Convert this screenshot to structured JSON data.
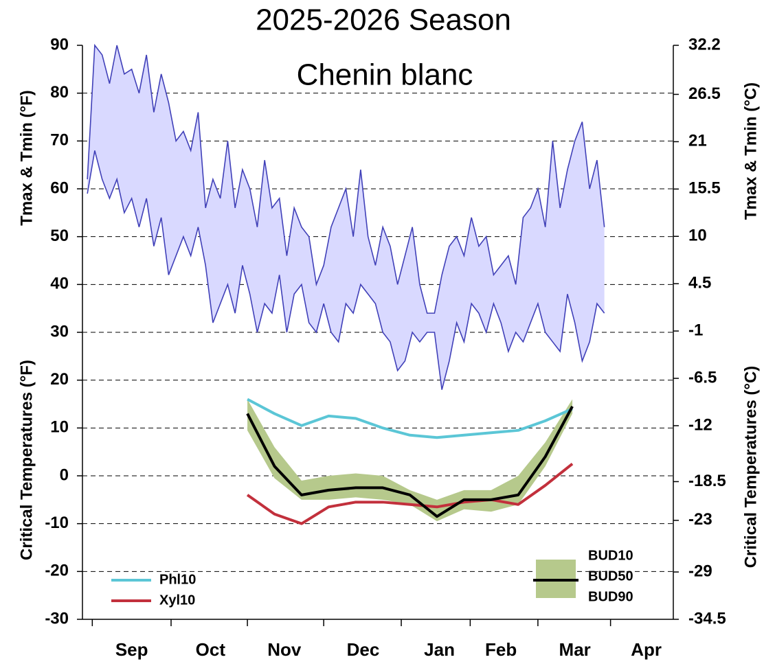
{
  "chart_data": {
    "type": "line",
    "title": "2025-2026 Season",
    "annotation": "Chenin blanc",
    "y_label_top": "Tmax & Tmin (°F)",
    "y_label_bottom": "Critical Temperatures (°F)",
    "y2_label_top": "Tmax & Tmin (°C)",
    "y2_label_bottom": "Critical Temperatures (°C)",
    "xlim": [
      0,
      240
    ],
    "xticks": [
      {
        "value": 20,
        "label": "Sep"
      },
      {
        "value": 52,
        "label": "Oct"
      },
      {
        "value": 82,
        "label": "Nov"
      },
      {
        "value": 114,
        "label": "Dec"
      },
      {
        "value": 145,
        "label": "Jan"
      },
      {
        "value": 170,
        "label": "Feb"
      },
      {
        "value": 200,
        "label": "Mar"
      },
      {
        "value": 229,
        "label": "Apr"
      }
    ],
    "ylim": [
      -30,
      90
    ],
    "yticks": [
      -30,
      -20,
      -10,
      0,
      10,
      20,
      30,
      40,
      50,
      60,
      70,
      80,
      90
    ],
    "y2lim": [
      -34.5,
      32.2
    ],
    "y2ticks": [
      -34.5,
      -29,
      -23,
      -18.5,
      -12,
      -6.5,
      -1,
      4.5,
      10,
      15.5,
      21,
      26.5,
      32.2
    ],
    "grid": true,
    "range": {
      "color": "#4040b8",
      "fill_color": "#d9d9ff",
      "x": [
        2,
        5,
        8,
        11,
        14,
        17,
        20,
        23,
        26,
        29,
        32,
        35,
        38,
        41,
        44,
        47,
        50,
        53,
        56,
        59,
        62,
        65,
        68,
        71,
        74,
        77,
        80,
        83,
        86,
        89,
        92,
        95,
        98,
        101,
        104,
        107,
        110,
        113,
        116,
        119,
        122,
        125,
        128,
        131,
        134,
        137,
        140,
        143,
        146,
        149,
        152,
        155,
        158,
        161,
        164,
        167,
        170,
        173,
        176,
        179,
        182,
        185,
        188,
        191,
        194,
        197,
        200,
        203,
        206,
        209,
        212
      ],
      "tmax": [
        62,
        90,
        88,
        82,
        90,
        84,
        85,
        80,
        88,
        76,
        84,
        78,
        70,
        72,
        68,
        76,
        56,
        62,
        58,
        70,
        56,
        64,
        60,
        52,
        66,
        56,
        58,
        46,
        56,
        52,
        50,
        40,
        44,
        52,
        56,
        60,
        50,
        64,
        50,
        44,
        52,
        48,
        40,
        46,
        52,
        40,
        34,
        34,
        42,
        48,
        50,
        46,
        54,
        48,
        50,
        42,
        44,
        46,
        40,
        54,
        56,
        60,
        52,
        70,
        56,
        64,
        70,
        74,
        60,
        66,
        52
      ],
      "tmin": [
        59,
        68,
        62,
        58,
        62,
        55,
        58,
        52,
        58,
        48,
        54,
        42,
        46,
        50,
        46,
        52,
        44,
        32,
        36,
        40,
        34,
        44,
        38,
        30,
        36,
        34,
        42,
        30,
        38,
        40,
        32,
        30,
        36,
        30,
        28,
        36,
        34,
        40,
        38,
        36,
        30,
        28,
        22,
        24,
        30,
        28,
        30,
        30,
        18,
        24,
        32,
        28,
        36,
        34,
        30,
        36,
        32,
        26,
        30,
        28,
        32,
        36,
        30,
        28,
        26,
        38,
        32,
        24,
        28,
        36,
        34
      ]
    },
    "bud_band": {
      "color": "#b6c98c",
      "labels": [
        "BUD10",
        "BUD90"
      ],
      "x": [
        67,
        78,
        89,
        100,
        111,
        122,
        133,
        144,
        155,
        166,
        177,
        188,
        199
      ],
      "bud10": [
        16,
        6,
        -1,
        0,
        0.5,
        0,
        -3,
        -5,
        -3,
        -3,
        0,
        7,
        16
      ],
      "bud90": [
        9.5,
        -0.5,
        -5,
        -5,
        -4.5,
        -5,
        -6,
        -9.5,
        -7,
        -7.5,
        -6,
        2,
        13
      ]
    },
    "series": [
      {
        "name": "Phl10",
        "color": "#5bc6d6",
        "x": [
          67,
          78,
          89,
          100,
          111,
          122,
          133,
          144,
          155,
          166,
          177,
          188,
          199
        ],
        "values": [
          16,
          13,
          10.5,
          12.5,
          12,
          10,
          8.5,
          8,
          8.5,
          9,
          9.5,
          11.5,
          14
        ]
      },
      {
        "name": "Xyl10",
        "color": "#c2303c",
        "x": [
          67,
          78,
          89,
          100,
          111,
          122,
          133,
          144,
          155,
          166,
          177,
          188,
          199
        ],
        "values": [
          -4,
          -8,
          -10,
          -6.5,
          -5.5,
          -5.5,
          -6,
          -6.5,
          -5.5,
          -5,
          -6,
          -2,
          2.5
        ]
      },
      {
        "name": "BUD50",
        "color": "#000000",
        "x": [
          67,
          78,
          89,
          100,
          111,
          122,
          133,
          144,
          155,
          166,
          177,
          188,
          199
        ],
        "values": [
          13,
          2,
          -4,
          -3,
          -2.5,
          -2.5,
          -4,
          -8.5,
          -5,
          -5,
          -4,
          4,
          14.5
        ]
      }
    ]
  }
}
